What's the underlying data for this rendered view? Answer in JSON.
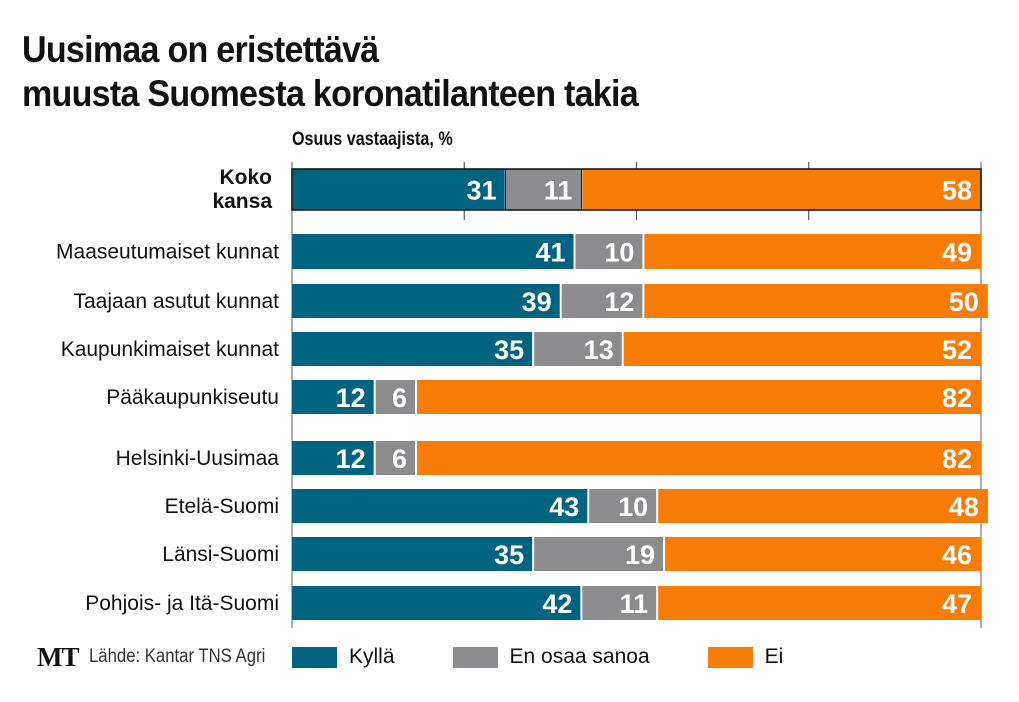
{
  "header": {
    "title_line1": "Uusimaa on eristettävä",
    "title_line2": "muusta Suomesta koronatilanteen takia",
    "subtitle": "Osuus vastaajista, %"
  },
  "footer": {
    "logo": "MT",
    "source": "Lähde: Kantar TNS Agri"
  },
  "colors": {
    "kylla": "#00637f",
    "en_osaa": "#8c8c8f",
    "ei": "#f77c08"
  },
  "chart_data": {
    "type": "bar",
    "orientation": "horizontal",
    "stacked": true,
    "title": "Uusimaa on eristettävä muusta Suomesta koronatilanteen takia",
    "subtitle": "Osuus vastaajista, %",
    "xlabel": "",
    "ylabel": "",
    "xlim": [
      0,
      100
    ],
    "grid": true,
    "grid_ticks": [
      25,
      50,
      75
    ],
    "legend_position": "bottom",
    "categories": [
      "Koko kansa",
      "Maaseutumaiset kunnat",
      "Taajaan asutut kunnat",
      "Kaupunkimaiset kunnat",
      "Pääkaupunkiseutu",
      "Helsinki-Uusimaa",
      "Etelä-Suomi",
      "Länsi-Suomi",
      "Pohjois- ja Itä-Suomi"
    ],
    "category_display": [
      [
        "Koko",
        "kansa"
      ],
      [
        "Maaseutumaiset kunnat"
      ],
      [
        "Taajaan asutut kunnat"
      ],
      [
        "Kaupunkimaiset kunnat"
      ],
      [
        "Pääkaupunkiseutu"
      ],
      [
        "Helsinki-Uusimaa"
      ],
      [
        "Etelä-Suomi"
      ],
      [
        "Länsi-Suomi"
      ],
      [
        "Pohjois- ja Itä-Suomi"
      ]
    ],
    "groups": [
      [
        0
      ],
      [
        1,
        2,
        3,
        4
      ],
      [
        5,
        6,
        7,
        8
      ]
    ],
    "highlighted": [
      0
    ],
    "series": [
      {
        "name": "Kyllä",
        "color": "#00637f",
        "values": [
          31,
          41,
          39,
          35,
          12,
          12,
          43,
          35,
          42
        ]
      },
      {
        "name": "En osaa sanoa",
        "color": "#8c8c8f",
        "values": [
          11,
          10,
          12,
          13,
          6,
          6,
          10,
          19,
          11
        ]
      },
      {
        "name": "Ei",
        "color": "#f77c08",
        "values": [
          58,
          49,
          50,
          52,
          82,
          82,
          48,
          46,
          47
        ]
      }
    ],
    "source": "Lähde: Kantar TNS Agri"
  }
}
